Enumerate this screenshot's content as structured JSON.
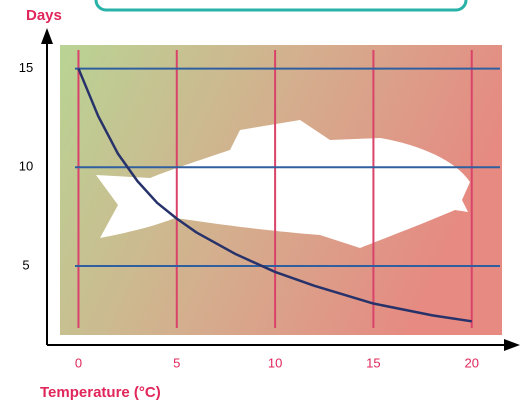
{
  "chart_data": {
    "type": "line",
    "y_label": "Days",
    "x_label": "Temperature (°C)",
    "x": [
      0,
      1,
      2,
      3,
      4,
      5,
      6,
      8,
      10,
      12,
      15,
      18,
      20
    ],
    "series": [
      {
        "name": "Days",
        "color": "#27326a",
        "values": [
          15,
          12.6,
          10.7,
          9.3,
          8.2,
          7.4,
          6.7,
          5.6,
          4.7,
          4.0,
          3.1,
          2.5,
          2.2
        ]
      }
    ],
    "xlim": [
      -1.6,
      22.2
    ],
    "ylim": [
      1,
      16.7
    ],
    "xticks": [
      0,
      5,
      10,
      15,
      20
    ],
    "yticks": [
      5,
      10,
      15
    ],
    "grid": true,
    "x_grid_color": "#d9436a",
    "y_grid_color": "#2f5f9e"
  }
}
